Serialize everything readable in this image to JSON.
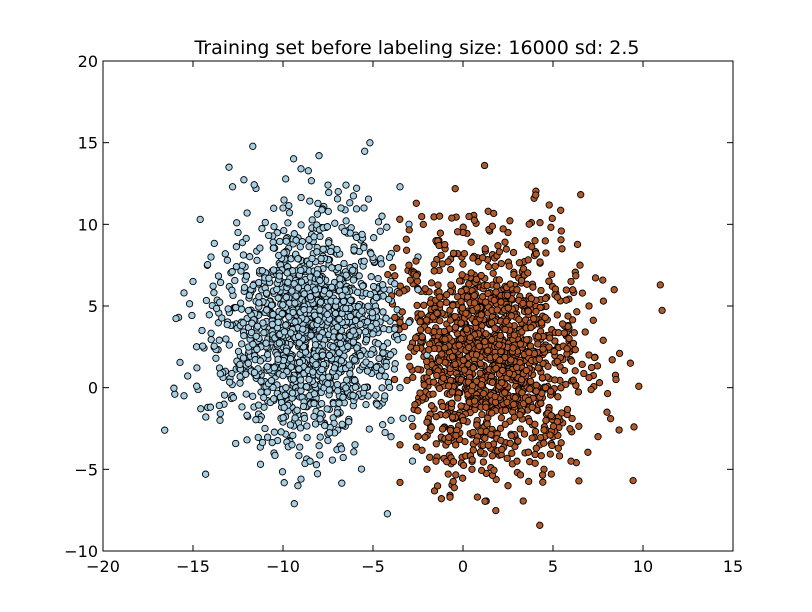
{
  "chart_data": {
    "type": "scatter",
    "title": "Training set before labeling size: 16000 sd: 2.5",
    "xlabel": "",
    "ylabel": "",
    "xlim": [
      -20,
      15
    ],
    "ylim": [
      -10,
      20
    ],
    "x_ticks": [
      -20,
      -15,
      -10,
      -5,
      0,
      5,
      10,
      15
    ],
    "y_ticks": [
      -10,
      -5,
      0,
      5,
      10,
      15,
      20
    ],
    "x_tick_labels": [
      "−20",
      "−15",
      "−10",
      "−5",
      "0",
      "5",
      "10",
      "15"
    ],
    "y_tick_labels": [
      "−10",
      "−5",
      "0",
      "5",
      "10",
      "15",
      "20"
    ],
    "grid": false,
    "marker_edge_color": "#000000",
    "series": [
      {
        "color": "#a6cee3",
        "cluster_center": [
          -8.5,
          3.5
        ],
        "approx_point_count": 8000,
        "points": [
          [
            -15.5,
            -0.5
          ],
          [
            -14.3,
            -5.3
          ],
          [
            -9.0,
            -5.6
          ],
          [
            -15.8,
            4.3
          ],
          [
            -15.5,
            5.8
          ],
          [
            -14.6,
            10.3
          ],
          [
            -13.0,
            13.5
          ],
          [
            -9.0,
            13.4
          ],
          [
            -8.0,
            14.2
          ],
          [
            -11.5,
            12.2
          ],
          [
            -7.5,
            12.4
          ],
          [
            -6.5,
            12.4
          ],
          [
            -3.5,
            12.3
          ],
          [
            -12.8,
            12.3
          ],
          [
            -13.2,
            1.0
          ],
          [
            -14.8,
            2.5
          ],
          [
            -12.0,
            -3.2
          ],
          [
            -10.5,
            -4.0
          ],
          [
            -8.5,
            -4.5
          ],
          [
            -6.0,
            -3.5
          ],
          [
            -4.0,
            -3.0
          ],
          [
            -3.0,
            10.0
          ],
          [
            -4.5,
            10.5
          ],
          [
            -5.5,
            11.0
          ],
          [
            -10.0,
            11.0
          ],
          [
            -12.5,
            9.5
          ],
          [
            -14.0,
            8.0
          ],
          [
            -15.0,
            6.5
          ],
          [
            -14.5,
            3.5
          ],
          [
            -13.5,
            -2.0
          ],
          [
            -9.5,
            -3.5
          ],
          [
            -7.0,
            -3.8
          ],
          [
            -11.0,
            -2.5
          ],
          [
            -2.5,
            8.0
          ],
          [
            -3.0,
            4.0
          ],
          [
            -2.0,
            2.0
          ],
          [
            -3.5,
            0.0
          ],
          [
            -4.0,
            -2.0
          ],
          [
            -2.5,
            6.0
          ]
        ]
      },
      {
        "color": "#b15928",
        "cluster_center": [
          1.5,
          2.0
        ],
        "approx_point_count": 8000,
        "points": [
          [
            1.2,
            13.6
          ],
          [
            1.4,
            10.8
          ],
          [
            3.8,
            10.1
          ],
          [
            -1.3,
            10.5
          ],
          [
            9.5,
            -2.4
          ],
          [
            9.3,
            1.5
          ],
          [
            8.7,
            2.1
          ],
          [
            8.4,
            6.0
          ],
          [
            7.8,
            5.3
          ],
          [
            -1.2,
            -6.8
          ],
          [
            0.8,
            -6.7
          ],
          [
            2.5,
            -6.0
          ],
          [
            -3.5,
            -5.8
          ],
          [
            -2.0,
            -5.0
          ],
          [
            4.5,
            -5.0
          ],
          [
            6.0,
            -4.5
          ],
          [
            7.5,
            -3.0
          ],
          [
            8.0,
            -1.5
          ],
          [
            8.5,
            0.5
          ],
          [
            6.5,
            7.5
          ],
          [
            5.5,
            8.5
          ],
          [
            4.0,
            9.0
          ],
          [
            2.5,
            9.5
          ],
          [
            0.0,
            9.5
          ],
          [
            -1.5,
            9.0
          ],
          [
            -3.0,
            7.5
          ],
          [
            -3.5,
            4.0
          ],
          [
            -3.8,
            0.5
          ],
          [
            -3.5,
            -3.5
          ],
          [
            -1.5,
            -4.5
          ],
          [
            0.5,
            -5.0
          ],
          [
            3.0,
            -4.5
          ],
          [
            5.0,
            -3.0
          ],
          [
            7.0,
            2.0
          ],
          [
            7.0,
            5.0
          ],
          [
            6.0,
            6.5
          ],
          [
            1.0,
            -3.5
          ],
          [
            3.0,
            6.0
          ]
        ]
      }
    ]
  }
}
